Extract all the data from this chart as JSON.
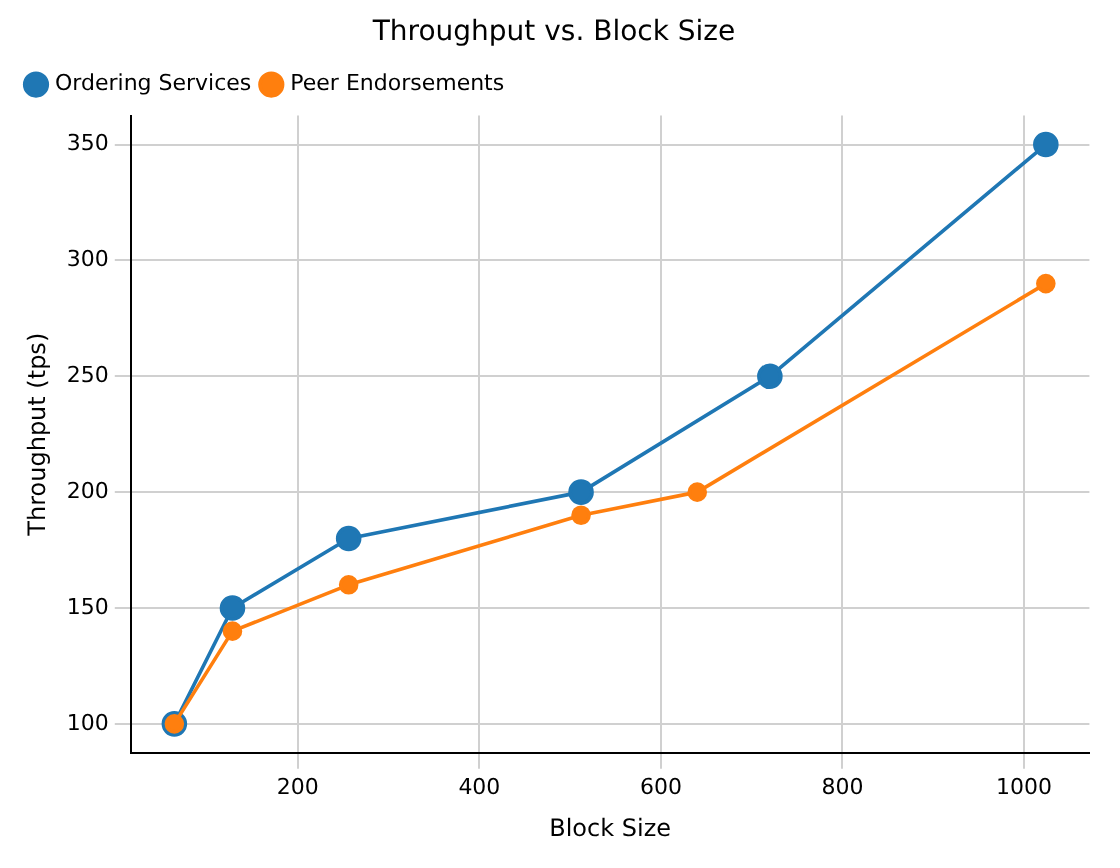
{
  "chart_data": {
    "type": "line",
    "title": "Throughput vs. Block Size",
    "xlabel": "Block Size",
    "ylabel": "Throughput (tps)",
    "series": [
      {
        "name": "Ordering Services",
        "color": "#1f77b4",
        "x": [
          64,
          128,
          256,
          512,
          720,
          1024
        ],
        "values": [
          100,
          150,
          180,
          200,
          250,
          350
        ]
      },
      {
        "name": "Peer Endorsements",
        "color": "#ff7f0e",
        "x": [
          64,
          128,
          256,
          512,
          640,
          1024
        ],
        "values": [
          100,
          140,
          160,
          190,
          200,
          290
        ]
      }
    ],
    "xlim": [
      16,
      1072
    ],
    "xticks": [
      200,
      400,
      600,
      800,
      1000
    ],
    "ylim": [
      87.5,
      362.5
    ],
    "yticks": [
      100,
      150,
      200,
      250,
      300,
      350
    ],
    "grid": true,
    "legend": "top left",
    "marker": "circle",
    "line_style": "solid"
  }
}
